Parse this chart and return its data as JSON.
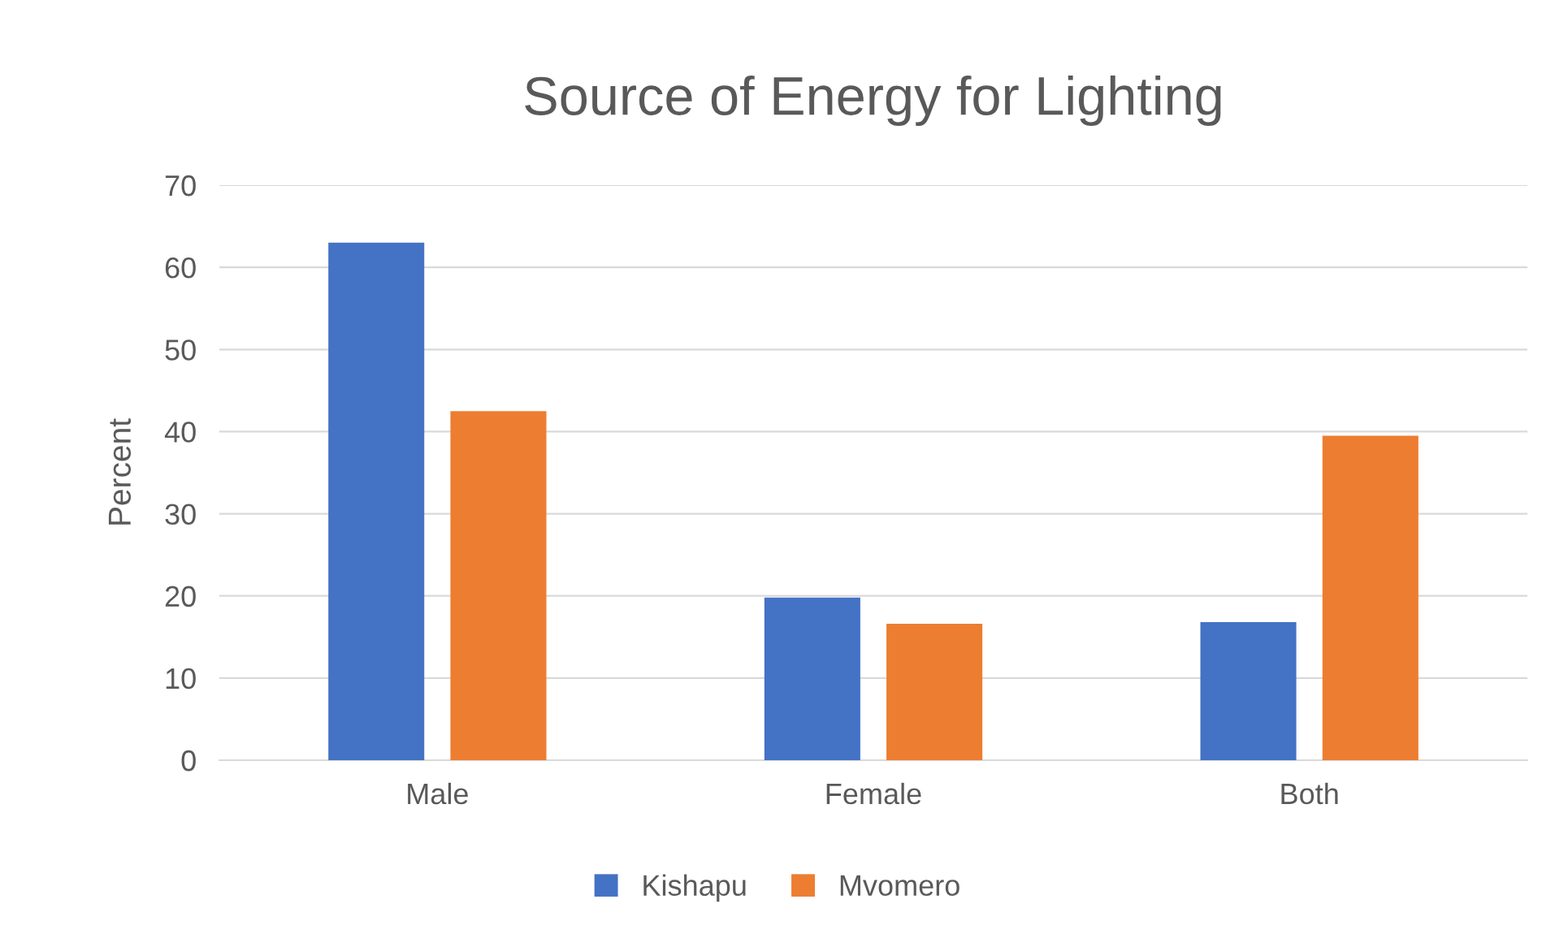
{
  "chart_data": {
    "type": "bar",
    "title": "Source of Energy for Lighting",
    "ylabel": "Percent",
    "categories": [
      "Male",
      "Female",
      "Both"
    ],
    "series": [
      {
        "name": "Kishapu",
        "color": "#4472c4",
        "values": [
          63.0,
          19.8,
          16.8
        ]
      },
      {
        "name": "Mvomero",
        "color": "#ed7d31",
        "values": [
          42.5,
          16.6,
          39.5
        ]
      }
    ],
    "ylim": [
      0,
      70
    ],
    "yticks": [
      0,
      10,
      20,
      30,
      40,
      50,
      60,
      70
    ],
    "grid": "y",
    "legend": "bottom"
  }
}
